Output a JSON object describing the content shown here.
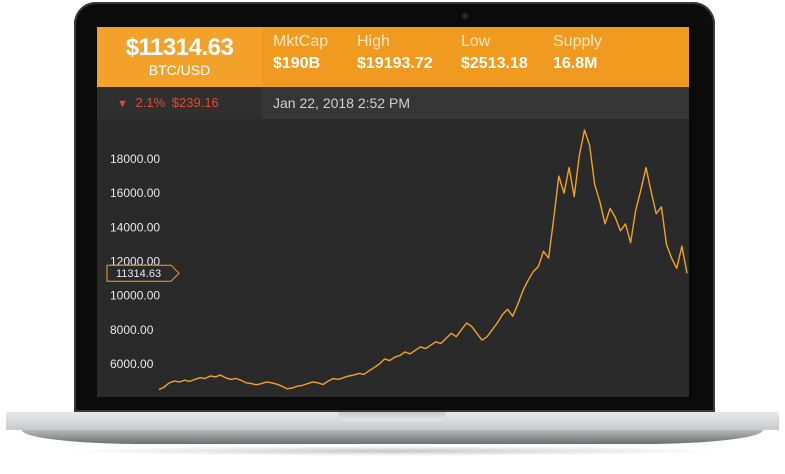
{
  "ticker": {
    "price": "$11314.63",
    "pair": "BTC/USD",
    "stats": [
      {
        "label": "MktCap",
        "value": "$190B"
      },
      {
        "label": "High",
        "value": "$19193.72"
      },
      {
        "label": "Low",
        "value": "$2513.18"
      },
      {
        "label": "Supply",
        "value": "16.8M"
      }
    ],
    "change_arrow": "▼",
    "change_percent": "2.1%",
    "change_amount": "$239.16",
    "timestamp": "Jan 22, 2018 2:52 PM",
    "colors": {
      "accent": "#f0a228",
      "down": "#e14b2b",
      "line": "#f0a228",
      "bg": "#2a2a2a"
    }
  },
  "chart_data": {
    "type": "line",
    "y_ticks": [
      "18000.00",
      "16000.00",
      "14000.00",
      "12000.00",
      "10000.00",
      "8000.00",
      "6000.00"
    ],
    "y_tick_values": [
      18000,
      16000,
      14000,
      12000,
      10000,
      8000,
      6000
    ],
    "current_label": "11314.63",
    "current_value": 11314.63,
    "ylim": [
      4500,
      19800
    ],
    "series": [
      {
        "values": [
          4500,
          4650,
          4900,
          5000,
          4950,
          5050,
          4980,
          5100,
          5200,
          5150,
          5300,
          5250,
          5350,
          5200,
          5100,
          5150,
          5050,
          4900,
          4850,
          4780,
          4850,
          4950,
          4900,
          4820,
          4700,
          4550,
          4600,
          4700,
          4750,
          4850,
          4950,
          4900,
          4800,
          5000,
          5150,
          5100,
          5200,
          5300,
          5350,
          5450,
          5400,
          5600,
          5800,
          6000,
          6300,
          6200,
          6400,
          6500,
          6700,
          6600,
          6800,
          7000,
          6900,
          7100,
          7300,
          7200,
          7500,
          7800,
          7600,
          8000,
          8400,
          8200,
          7800,
          7400,
          7600,
          8000,
          8400,
          8900,
          9200,
          8800,
          9500,
          10300,
          10900,
          11400,
          11700,
          12600,
          12200,
          14500,
          17000,
          16000,
          17500,
          15800,
          18200,
          19700,
          18800,
          16500,
          15500,
          14200,
          15100,
          14600,
          13800,
          14200,
          13100,
          15000,
          16200,
          17500,
          16100,
          14800,
          15200,
          13000,
          12200,
          11600,
          12900,
          11314
        ]
      }
    ]
  }
}
